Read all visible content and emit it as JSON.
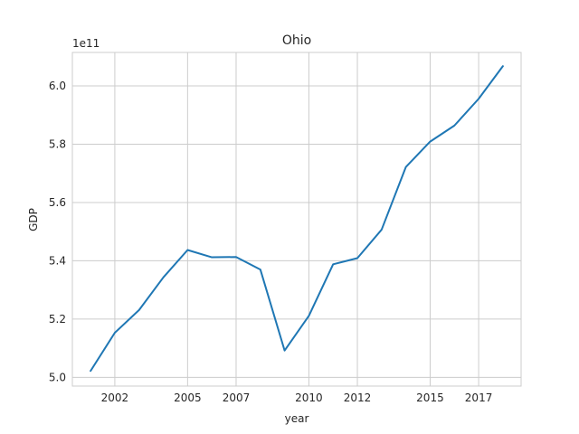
{
  "chart_data": {
    "type": "line",
    "title": "Ohio",
    "xlabel": "year",
    "ylabel": "GDP",
    "y_offset_label": "1e11",
    "x_ticks": [
      2002,
      2005,
      2007,
      2010,
      2012,
      2015,
      2017
    ],
    "x_tick_labels": [
      "2002",
      "2005",
      "2007",
      "2010",
      "2012",
      "2015",
      "2017"
    ],
    "y_ticks": [
      5.0,
      5.2,
      5.4,
      5.6,
      5.8,
      6.0
    ],
    "y_tick_labels": [
      "5.0",
      "5.2",
      "5.4",
      "5.6",
      "5.8",
      "6.0"
    ],
    "xlim": [
      2000.25,
      2018.75
    ],
    "ylim": [
      4.97,
      6.115
    ],
    "grid": true,
    "series": [
      {
        "color": "#1f77b4",
        "x": [
          2001,
          2002,
          2003,
          2004,
          2005,
          2006,
          2007,
          2008,
          2009,
          2010,
          2011,
          2012,
          2013,
          2014,
          2015,
          2016,
          2017,
          2018
        ],
        "y": [
          5.022,
          5.153,
          5.231,
          5.343,
          5.437,
          5.412,
          5.413,
          5.37,
          5.092,
          5.211,
          5.388,
          5.409,
          5.507,
          5.722,
          5.809,
          5.864,
          5.956,
          6.068
        ]
      }
    ]
  }
}
